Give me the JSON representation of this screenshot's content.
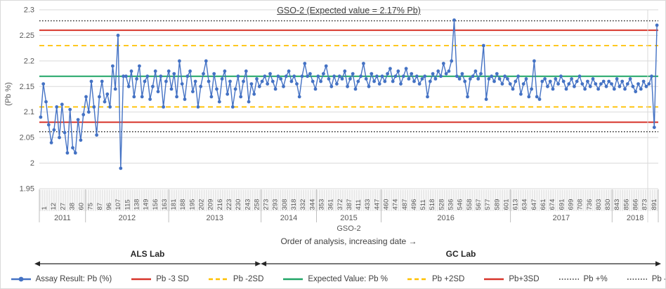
{
  "chart_data": {
    "type": "line",
    "title": "GSO-2 (Expected value = 2.17% Pb)",
    "ylabel": "(Pb %)",
    "xlabel": "Order of analysis, increasing date →",
    "x_group_label": "GSO-2",
    "ylim": [
      1.95,
      2.3
    ],
    "y_ticks": [
      "2.3",
      "2.25",
      "2.2",
      "2.15",
      "2.1",
      "2.05",
      "2",
      "1.95"
    ],
    "grid": true,
    "legend_position": "bottom",
    "year_groups": [
      {
        "year": "2011",
        "tick_labels": [
          "1",
          "12",
          "27",
          "38",
          "60"
        ]
      },
      {
        "year": "2012",
        "tick_labels": [
          "75",
          "87",
          "96",
          "107",
          "115",
          "138",
          "149",
          "156",
          "163"
        ]
      },
      {
        "year": "2013",
        "tick_labels": [
          "181",
          "188",
          "195",
          "202",
          "209",
          "216",
          "223",
          "230",
          "243",
          "258"
        ]
      },
      {
        "year": "2014",
        "tick_labels": [
          "273",
          "293",
          "308",
          "318",
          "332",
          "344"
        ]
      },
      {
        "year": "2015",
        "tick_labels": [
          "353",
          "361",
          "372",
          "387",
          "411",
          "433",
          "447"
        ]
      },
      {
        "year": "2016",
        "tick_labels": [
          "460",
          "474",
          "487",
          "496",
          "511",
          "518",
          "528",
          "536",
          "546",
          "558",
          "567",
          "577",
          "589",
          "601"
        ]
      },
      {
        "year": "2017",
        "tick_labels": [
          "613",
          "634",
          "647",
          "661",
          "674",
          "691",
          "699",
          "708",
          "736",
          "803",
          "830"
        ]
      },
      {
        "year": "2018",
        "tick_labels": [
          "843",
          "856",
          "866",
          "873",
          "891"
        ]
      }
    ],
    "series": {
      "name": "Assay Result: Pb (%)",
      "color": "#4472c4",
      "values": [
        2.09,
        2.155,
        2.12,
        2.075,
        2.04,
        2.065,
        2.11,
        2.05,
        2.115,
        2.06,
        2.02,
        2.105,
        2.03,
        2.02,
        2.085,
        2.045,
        2.095,
        2.13,
        2.1,
        2.16,
        2.11,
        2.055,
        2.13,
        2.16,
        2.12,
        2.135,
        2.11,
        2.19,
        2.145,
        2.25,
        1.99,
        2.17,
        2.17,
        2.15,
        2.18,
        2.13,
        2.165,
        2.19,
        2.13,
        2.16,
        2.17,
        2.125,
        2.15,
        2.18,
        2.14,
        2.17,
        2.11,
        2.16,
        2.18,
        2.145,
        2.175,
        2.13,
        2.2,
        2.155,
        2.125,
        2.17,
        2.18,
        2.14,
        2.16,
        2.11,
        2.15,
        2.175,
        2.2,
        2.16,
        2.13,
        2.175,
        2.145,
        2.12,
        2.165,
        2.18,
        2.135,
        2.16,
        2.11,
        2.145,
        2.17,
        2.13,
        2.16,
        2.18,
        2.12,
        2.155,
        2.135,
        2.165,
        2.15,
        2.16,
        2.17,
        2.155,
        2.175,
        2.16,
        2.145,
        2.17,
        2.165,
        2.15,
        2.17,
        2.18,
        2.16,
        2.17,
        2.155,
        2.13,
        2.17,
        2.195,
        2.17,
        2.175,
        2.16,
        2.145,
        2.17,
        2.16,
        2.175,
        2.19,
        2.165,
        2.15,
        2.17,
        2.155,
        2.17,
        2.165,
        2.18,
        2.15,
        2.165,
        2.175,
        2.145,
        2.16,
        2.17,
        2.195,
        2.165,
        2.15,
        2.175,
        2.16,
        2.17,
        2.155,
        2.17,
        2.16,
        2.175,
        2.185,
        2.16,
        2.17,
        2.18,
        2.155,
        2.17,
        2.185,
        2.165,
        2.175,
        2.16,
        2.17,
        2.155,
        2.165,
        2.17,
        2.13,
        2.16,
        2.175,
        2.165,
        2.18,
        2.17,
        2.195,
        2.175,
        2.18,
        2.2,
        2.28,
        2.17,
        2.165,
        2.175,
        2.16,
        2.13,
        2.165,
        2.17,
        2.18,
        2.165,
        2.175,
        2.23,
        2.125,
        2.165,
        2.17,
        2.16,
        2.175,
        2.165,
        2.155,
        2.17,
        2.165,
        2.155,
        2.145,
        2.16,
        2.17,
        2.135,
        2.155,
        2.165,
        2.13,
        2.145,
        2.2,
        2.13,
        2.125,
        2.16,
        2.165,
        2.15,
        2.16,
        2.145,
        2.165,
        2.155,
        2.17,
        2.16,
        2.145,
        2.155,
        2.165,
        2.15,
        2.16,
        2.17,
        2.155,
        2.145,
        2.16,
        2.15,
        2.165,
        2.155,
        2.145,
        2.155,
        2.16,
        2.15,
        2.16,
        2.155,
        2.145,
        2.165,
        2.15,
        2.16,
        2.145,
        2.155,
        2.165,
        2.15,
        2.14,
        2.155,
        2.145,
        2.16,
        2.15,
        2.155,
        2.17,
        2.07,
        2.27
      ]
    },
    "reference_lines": [
      {
        "name": "Pb +%",
        "value": 2.2785,
        "style": "dotted",
        "color": "#333333"
      },
      {
        "name": "Pb+3SD",
        "value": 2.26,
        "style": "solid",
        "color": "#d7342a"
      },
      {
        "name": "Pb +2SD",
        "value": 2.23,
        "style": "dashed",
        "color": "#ffc000"
      },
      {
        "name": "Expected Value: Pb %",
        "value": 2.17,
        "style": "solid",
        "color": "#1fa567"
      },
      {
        "name": "Pb -2SD",
        "value": 2.11,
        "style": "dashed",
        "color": "#ffc000"
      },
      {
        "name": "Pb -3 SD",
        "value": 2.08,
        "style": "solid",
        "color": "#d7342a"
      },
      {
        "name": "Pb -5%",
        "value": 2.0615,
        "style": "dotted",
        "color": "#333333"
      }
    ],
    "labs": [
      {
        "label": "ALS Lab",
        "from_index": 0,
        "to_index": 82
      },
      {
        "label": "GC Lab",
        "from_index": 83,
        "to_index": 231
      }
    ]
  },
  "legend": {
    "items": [
      {
        "label": "Assay Result: Pb (%)",
        "style": "marker-line",
        "color": "#4472c4"
      },
      {
        "label": "Pb -3 SD",
        "style": "solid",
        "color": "#d7342a"
      },
      {
        "label": "Pb -2SD",
        "style": "dashed",
        "color": "#ffc000"
      },
      {
        "label": "Expected Value: Pb %",
        "style": "solid",
        "color": "#1fa567"
      },
      {
        "label": "Pb +2SD",
        "style": "dashed",
        "color": "#ffc000"
      },
      {
        "label": "Pb+3SD",
        "style": "solid",
        "color": "#d7342a"
      },
      {
        "label": "Pb +%",
        "style": "dotted",
        "color": "#333333"
      },
      {
        "label": "Pb -5%",
        "style": "dotted",
        "color": "#333333"
      }
    ]
  },
  "colors": {
    "gridline": "#d9d9d9",
    "axis_text": "#595959",
    "tick_band_stripe": "#e8e8e8",
    "separator": "#bfbfbf"
  }
}
